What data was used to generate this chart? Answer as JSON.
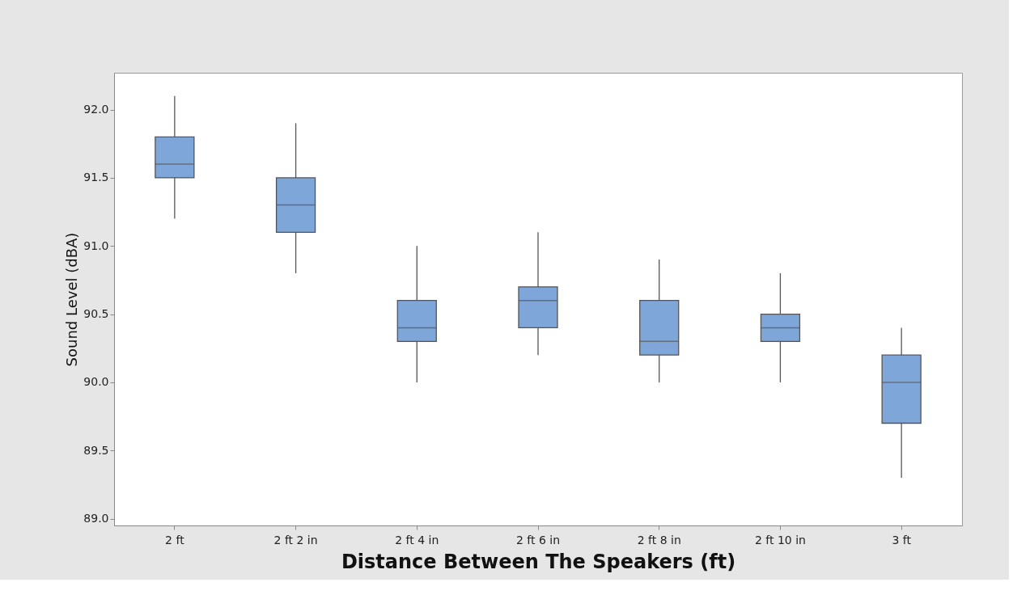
{
  "chart_data": {
    "type": "box",
    "xlabel": "Distance Between The Speakers (ft)",
    "ylabel": "Sound Level (dBA)",
    "categories": [
      "2 ft",
      "2 ft 2 in",
      "2 ft 4 in",
      "2 ft 6 in",
      "2 ft 8 in",
      "2 ft 10 in",
      "3 ft"
    ],
    "series": [
      {
        "color": "#7ea6d9",
        "boxes": [
          {
            "low": 91.2,
            "q1": 91.5,
            "median": 91.6,
            "q3": 91.8,
            "high": 92.1
          },
          {
            "low": 90.8,
            "q1": 91.1,
            "median": 91.3,
            "q3": 91.5,
            "high": 91.9
          },
          {
            "low": 90.0,
            "q1": 90.3,
            "median": 90.4,
            "q3": 90.6,
            "high": 91.0
          },
          {
            "low": 90.2,
            "q1": 90.4,
            "median": 90.6,
            "q3": 90.7,
            "high": 91.1
          },
          {
            "low": 90.0,
            "q1": 90.2,
            "median": 90.3,
            "q3": 90.6,
            "high": 90.9
          },
          {
            "low": 90.0,
            "q1": 90.3,
            "median": 90.4,
            "q3": 90.5,
            "high": 90.8
          },
          {
            "low": 89.3,
            "q1": 89.7,
            "median": 90.0,
            "q3": 90.2,
            "high": 90.4
          }
        ]
      }
    ],
    "ylim": [
      88.95,
      92.27
    ],
    "yticks": [
      {
        "value": 89,
        "label": "89.0"
      },
      {
        "value": 89.5,
        "label": "89.5"
      },
      {
        "value": 90,
        "label": "90.0"
      },
      {
        "value": 90.5,
        "label": "90.5"
      },
      {
        "value": 91,
        "label": "91.0"
      },
      {
        "value": 91.5,
        "label": "91.5"
      },
      {
        "value": 92,
        "label": "92.0"
      }
    ],
    "grid": false
  }
}
